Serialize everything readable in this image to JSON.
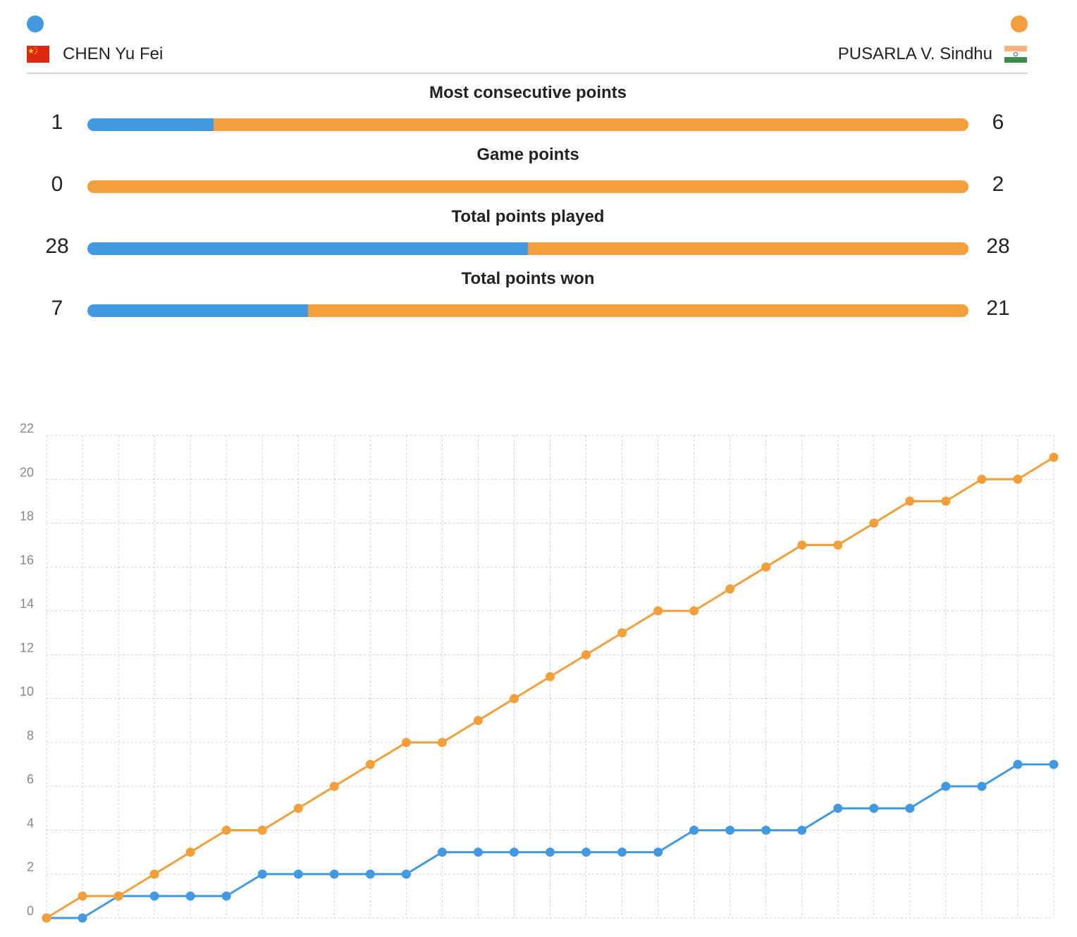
{
  "colors": {
    "player1": "#4299e1",
    "player2": "#f29f3b"
  },
  "players": [
    {
      "name": "CHEN Yu Fei",
      "flag": "china-flag-icon"
    },
    {
      "name": "PUSARLA V. Sindhu",
      "flag": "india-flag-icon"
    }
  ],
  "stats": [
    {
      "label": "Most consecutive points",
      "p1": 1,
      "p2": 6
    },
    {
      "label": "Game points",
      "p1": 0,
      "p2": 2
    },
    {
      "label": "Total points played",
      "p1": 28,
      "p2": 28
    },
    {
      "label": "Total points won",
      "p1": 7,
      "p2": 21
    }
  ],
  "chart_data": {
    "type": "line",
    "title": "",
    "xlabel": "",
    "ylabel": "",
    "x": [
      0,
      1,
      2,
      3,
      4,
      5,
      6,
      7,
      8,
      9,
      10,
      11,
      12,
      13,
      14,
      15,
      16,
      17,
      18,
      19,
      20,
      21,
      22,
      23,
      24,
      25,
      26,
      27,
      28
    ],
    "ylim": [
      0,
      22
    ],
    "yticks": [
      0,
      2,
      4,
      6,
      8,
      10,
      12,
      14,
      16,
      18,
      20,
      22
    ],
    "grid": true,
    "series": [
      {
        "color": "#4299e1",
        "values": [
          0,
          0,
          1,
          1,
          1,
          1,
          2,
          2,
          2,
          2,
          2,
          3,
          3,
          3,
          3,
          3,
          3,
          3,
          4,
          4,
          4,
          4,
          5,
          5,
          5,
          6,
          6,
          7,
          7
        ]
      },
      {
        "color": "#f29f3b",
        "values": [
          0,
          1,
          1,
          2,
          3,
          4,
          4,
          5,
          6,
          7,
          8,
          8,
          9,
          10,
          11,
          12,
          13,
          14,
          14,
          15,
          16,
          17,
          17,
          18,
          19,
          19,
          20,
          20,
          21
        ]
      }
    ]
  }
}
